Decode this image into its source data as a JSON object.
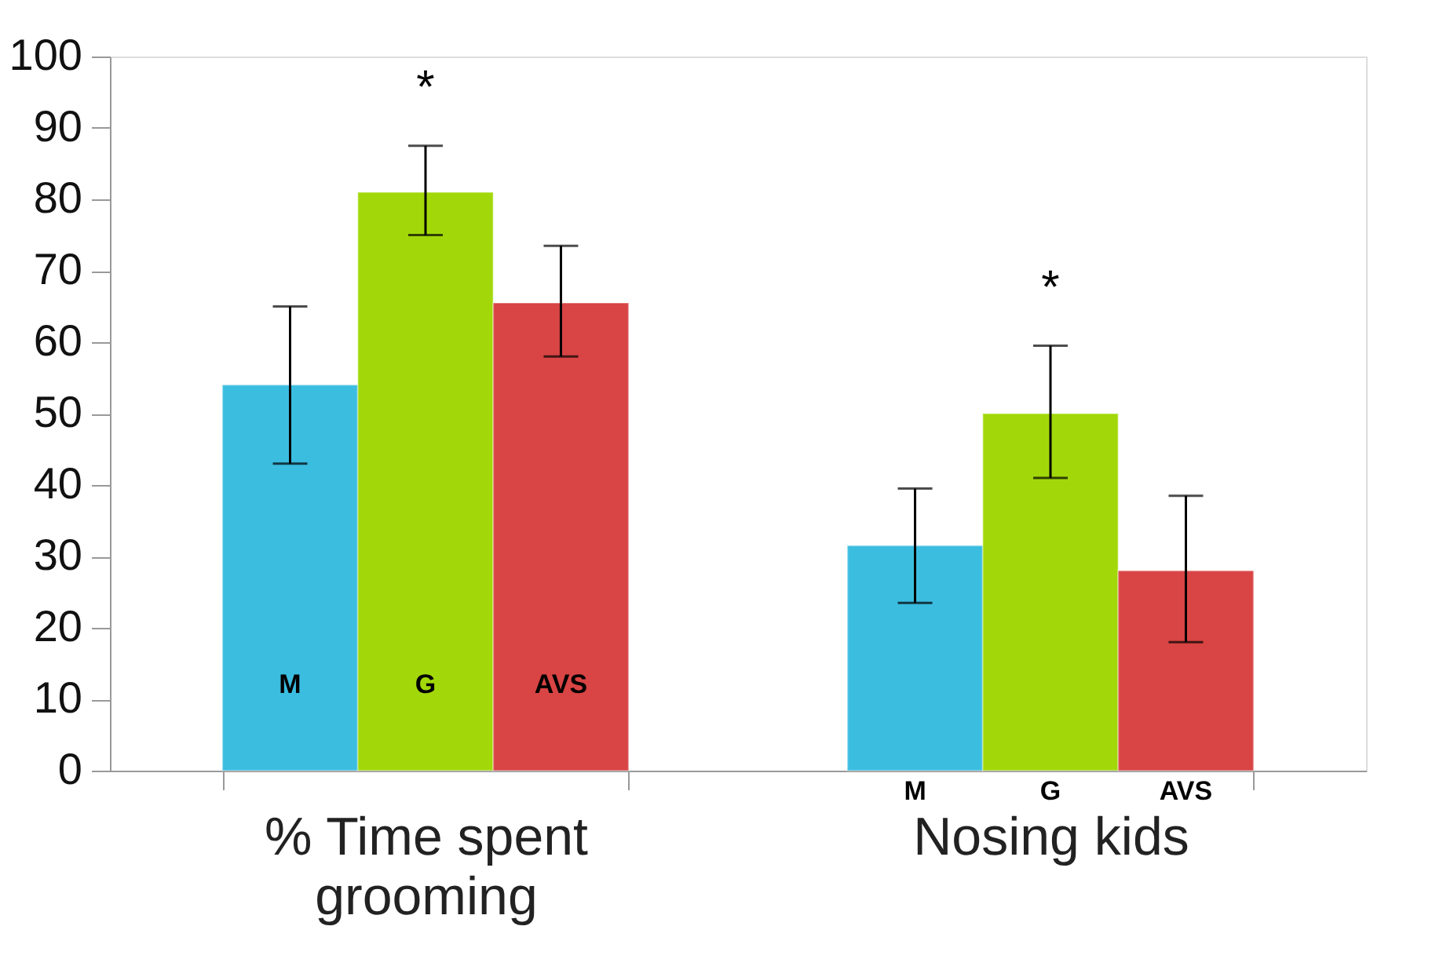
{
  "chart_data": {
    "type": "bar",
    "categories": [
      "% Time spent grooming",
      "Nosing kids"
    ],
    "series": [
      {
        "name": "M",
        "color": "#3bbde0",
        "values": [
          54,
          31.5
        ],
        "errors": [
          [
            43,
            65
          ],
          [
            23.5,
            39.5
          ]
        ]
      },
      {
        "name": "G",
        "color": "#a2d80a",
        "values": [
          81,
          50
        ],
        "errors": [
          [
            75,
            87.5
          ],
          [
            41,
            59.5
          ]
        ]
      },
      {
        "name": "AVS",
        "color": "#d94444",
        "values": [
          65.5,
          28
        ],
        "errors": [
          [
            58,
            73.5
          ],
          [
            18,
            38.5
          ]
        ]
      }
    ],
    "annotations": [
      "*",
      "*"
    ],
    "ylim": [
      0,
      100
    ],
    "yticks": [
      0,
      10,
      20,
      30,
      40,
      50,
      60,
      70,
      80,
      90,
      100
    ],
    "grid": false
  }
}
